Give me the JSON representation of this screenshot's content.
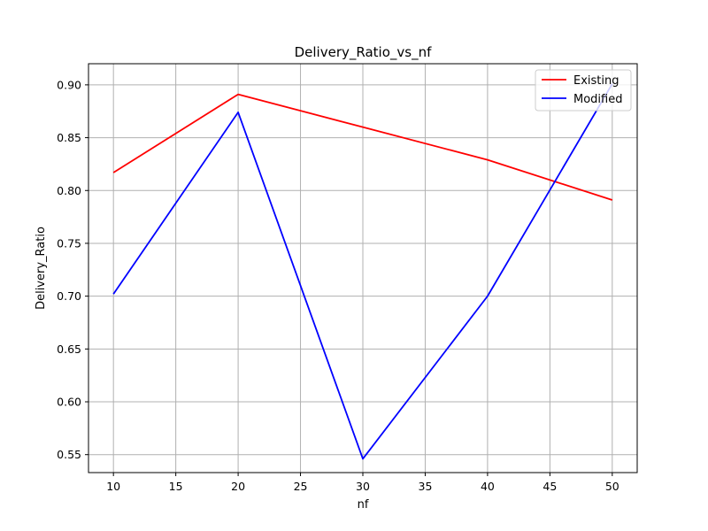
{
  "chart_data": {
    "type": "line",
    "title": "Delivery_Ratio_vs_nf",
    "xlabel": "nf",
    "ylabel": "Delivery_Ratio",
    "x": [
      10,
      20,
      30,
      40,
      50
    ],
    "xlim": [
      8,
      52
    ],
    "ylim": [
      0.533,
      0.92
    ],
    "xticks": [
      "10",
      "15",
      "20",
      "25",
      "30",
      "35",
      "40",
      "45",
      "50"
    ],
    "yticks": [
      "0.55",
      "0.60",
      "0.65",
      "0.70",
      "0.75",
      "0.80",
      "0.85",
      "0.90"
    ],
    "grid": true,
    "legend_position": "top-right",
    "series": [
      {
        "name": "Existing",
        "color": "#ff0000",
        "values": [
          0.817,
          0.891,
          0.86,
          0.829,
          0.791
        ]
      },
      {
        "name": "Modified",
        "color": "#0000ff",
        "values": [
          0.702,
          0.874,
          0.546,
          0.7,
          0.901
        ]
      }
    ]
  }
}
